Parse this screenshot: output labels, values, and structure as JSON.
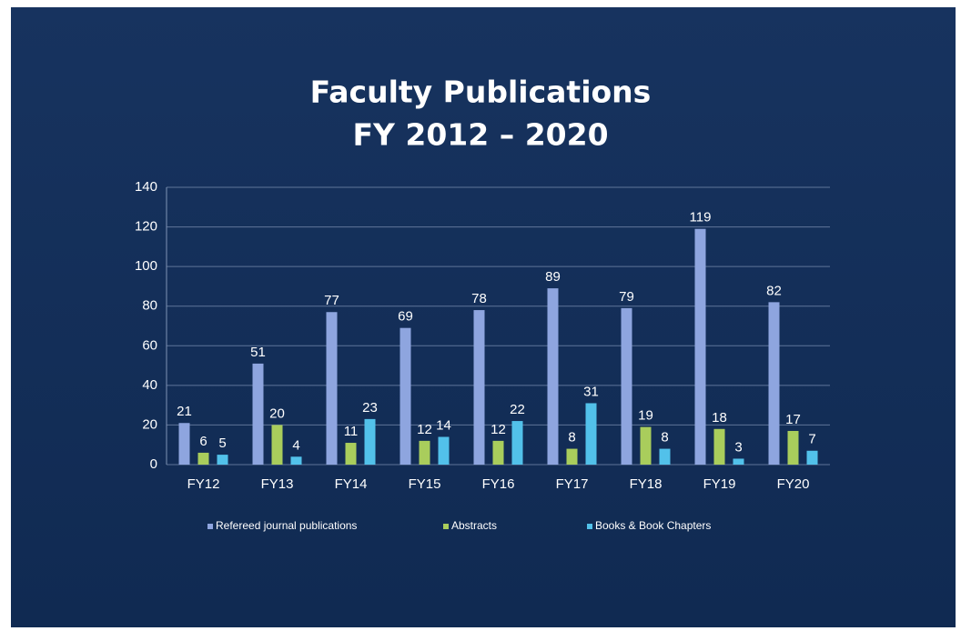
{
  "chart_data": {
    "type": "bar",
    "title": "Faculty Publications",
    "subtitle": "FY 2012 – 2020",
    "categories": [
      "FY12",
      "FY13",
      "FY14",
      "FY15",
      "FY16",
      "FY17",
      "FY18",
      "FY19",
      "FY20"
    ],
    "series": [
      {
        "name": "Refereed journal publications",
        "color": "#8ea5df",
        "values": [
          21,
          51,
          77,
          69,
          78,
          89,
          79,
          119,
          82
        ]
      },
      {
        "name": "Abstracts",
        "color": "#a9cd5c",
        "values": [
          6,
          20,
          11,
          12,
          12,
          8,
          19,
          18,
          17
        ]
      },
      {
        "name": "Books & Book Chapters",
        "color": "#52c1ea",
        "values": [
          5,
          4,
          23,
          14,
          22,
          31,
          8,
          3,
          7
        ]
      }
    ],
    "ylim": [
      0,
      140
    ],
    "yticks": [
      0,
      20,
      40,
      60,
      80,
      100,
      120,
      140
    ],
    "grid": true,
    "legend": "bottom"
  }
}
